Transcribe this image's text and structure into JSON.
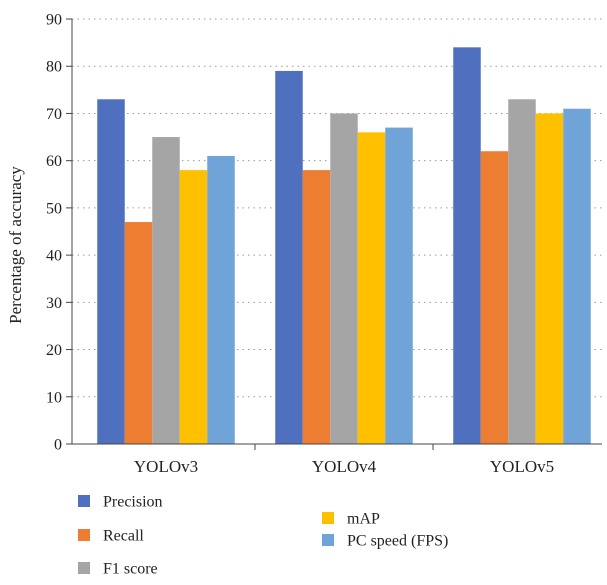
{
  "chart_data": {
    "type": "bar",
    "title": "",
    "xlabel": "",
    "ylabel": "Percentage of accuracy",
    "ylim": [
      0,
      90
    ],
    "yticks": [
      0,
      10,
      20,
      30,
      40,
      50,
      60,
      70,
      80,
      90
    ],
    "grid": true,
    "grid_style": "dotted horizontal",
    "legend_position": "bottom",
    "categories": [
      "YOLOv3",
      "YOLOv4",
      "YOLOv5"
    ],
    "series": [
      {
        "name": "Precision",
        "color": "#4F6FBF",
        "values": [
          73,
          79,
          84
        ]
      },
      {
        "name": "Recall",
        "color": "#ED7D31",
        "values": [
          47,
          58,
          62
        ]
      },
      {
        "name": "F1 score",
        "color": "#A5A5A5",
        "values": [
          65,
          70,
          73
        ]
      },
      {
        "name": "mAP",
        "color": "#FFC000",
        "values": [
          58,
          66,
          70
        ]
      },
      {
        "name": "PC speed (FPS)",
        "color": "#70A3D7",
        "values": [
          61,
          67,
          71
        ]
      }
    ]
  }
}
